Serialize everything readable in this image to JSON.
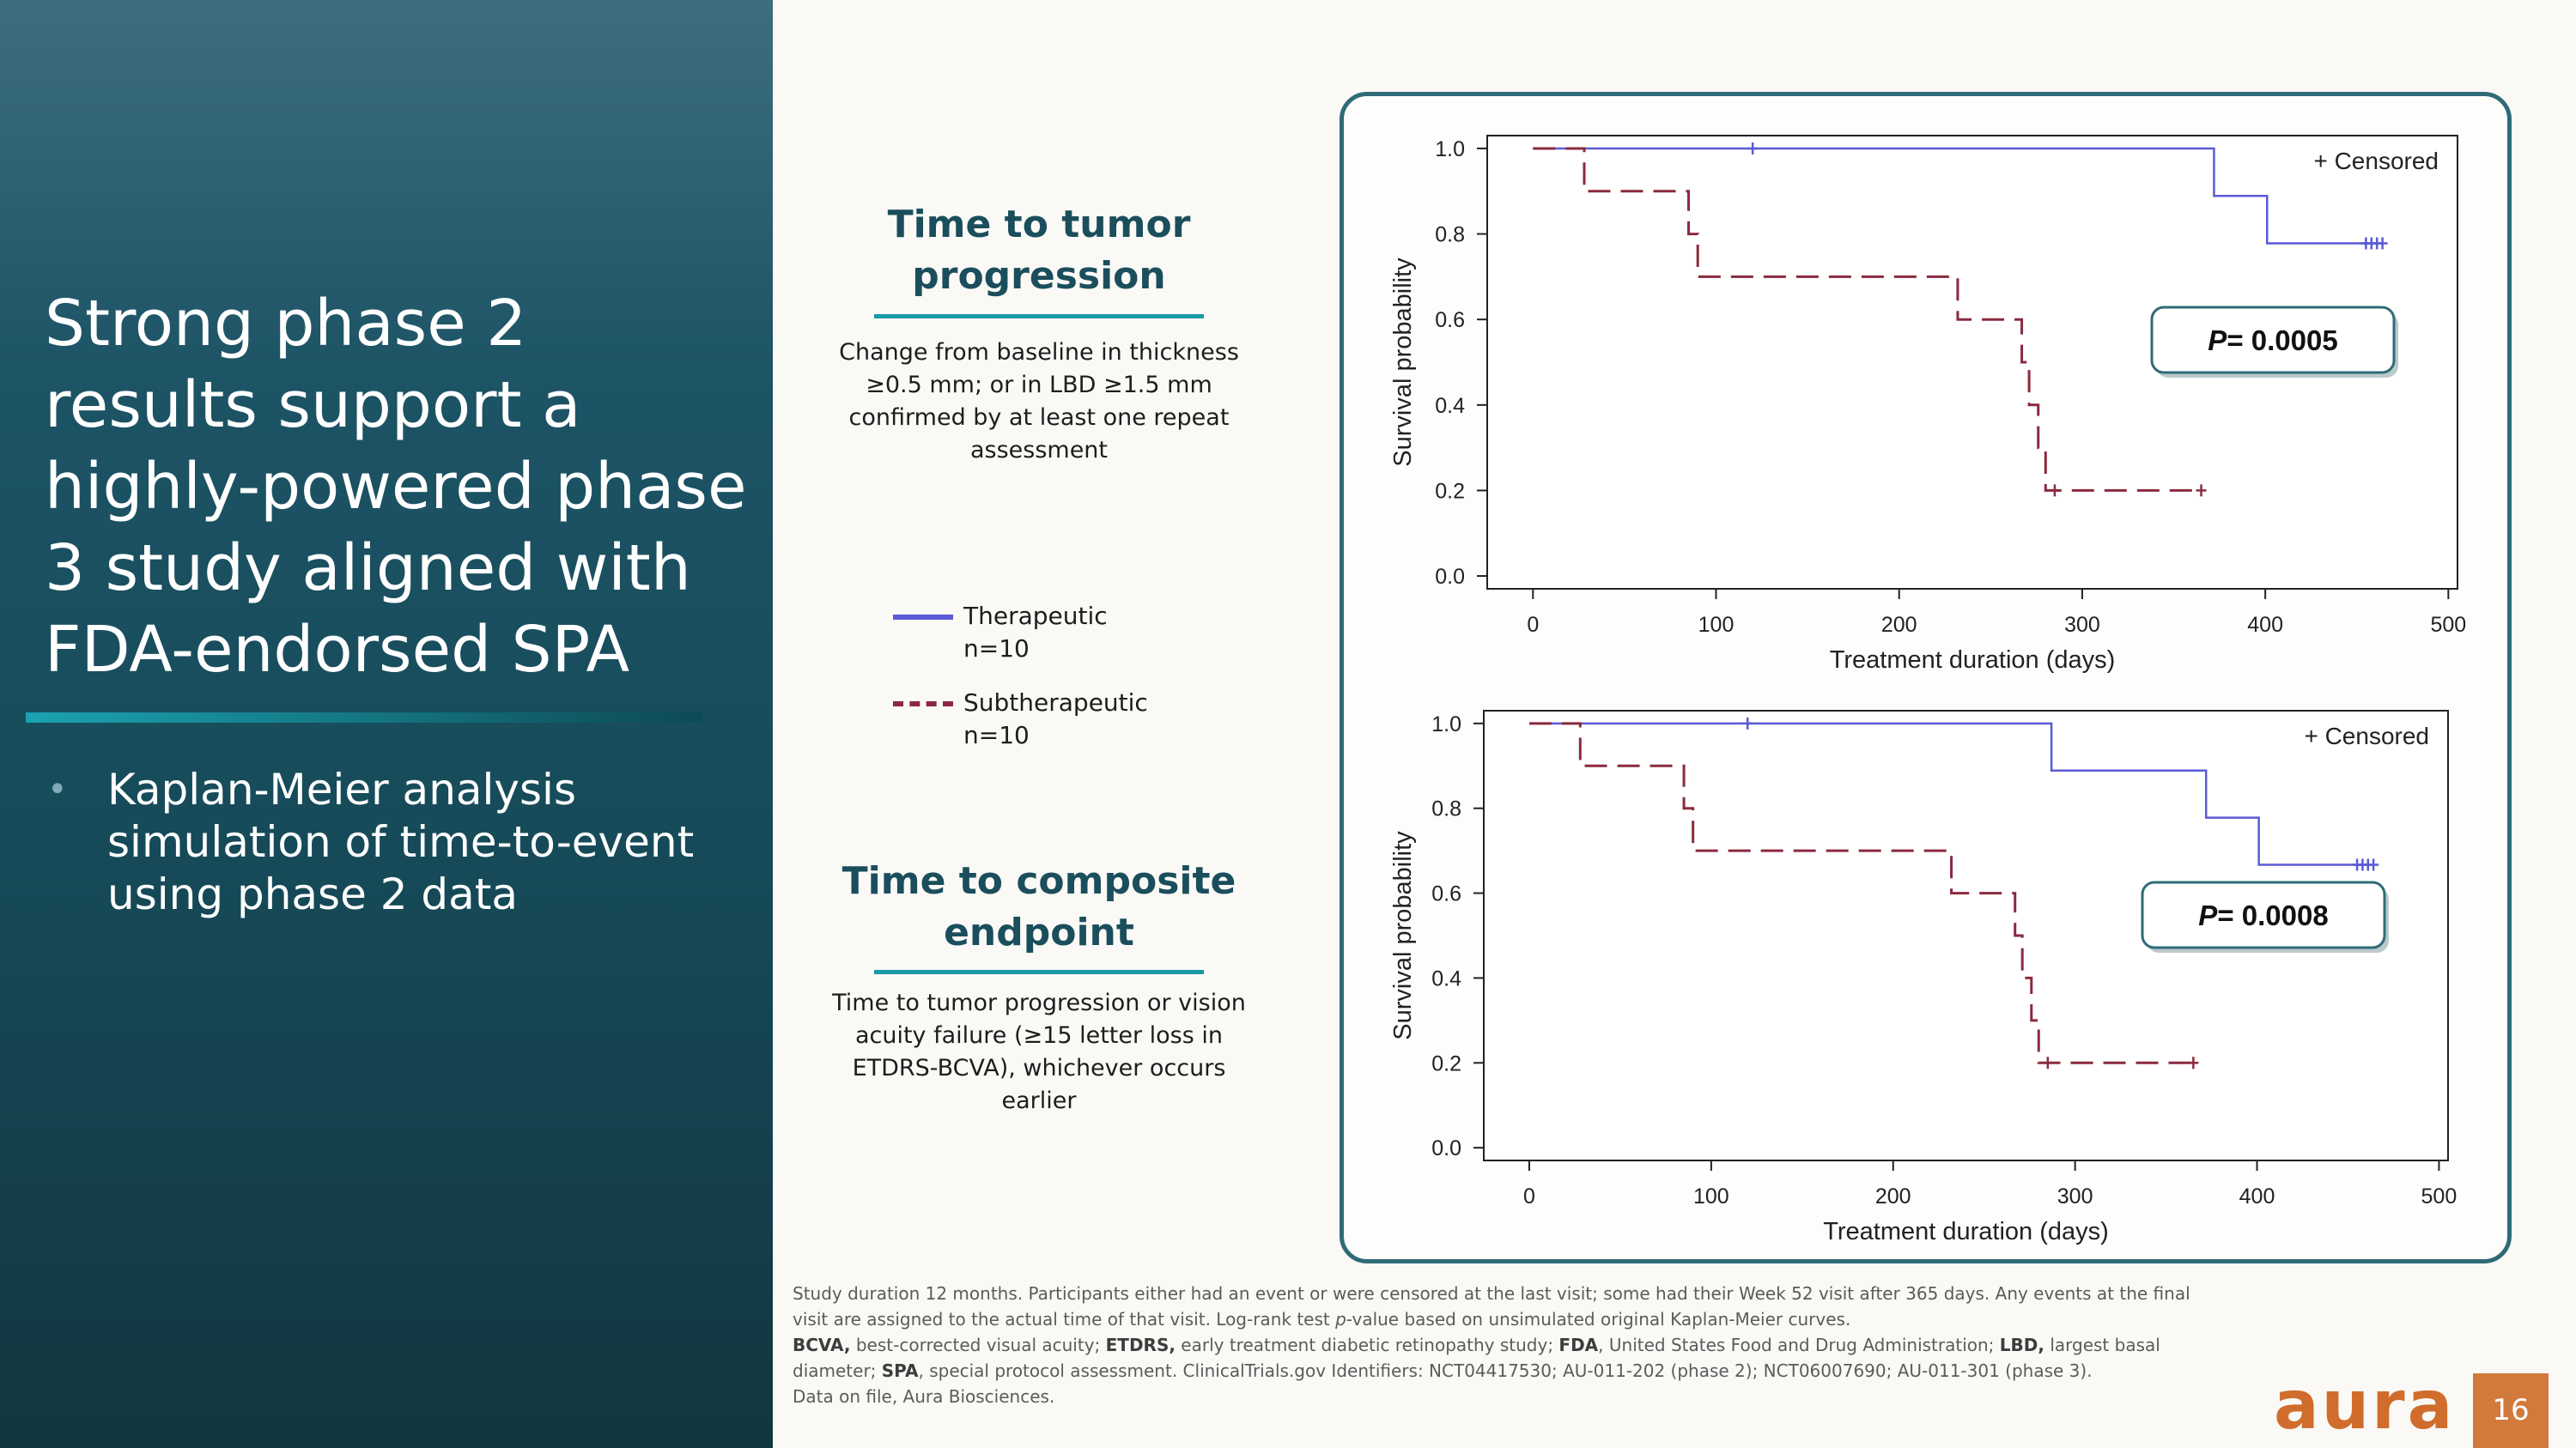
{
  "slide": {
    "title": "Strong phase 2 results support a highly-powered phase 3 study aligned with FDA-endorsed SPA",
    "bullet": "Kaplan-Meier analysis simulation of time-to-event using phase 2 data",
    "bullet_marker": "•",
    "page_number": "16",
    "logo_text": "aura"
  },
  "sections": [
    {
      "title": "Time to tumor progression",
      "description": "Change from baseline in thickness ≥0.5 mm; or in LBD ≥1.5 mm confirmed by at least one repeat assessment"
    },
    {
      "title": "Time to composite endpoint",
      "description": "Time to tumor progression or vision acuity failure (≥15 letter loss in ETDRS-BCVA), whichever occurs earlier"
    }
  ],
  "legend": [
    {
      "name": "Therapeutic",
      "n": "n=10",
      "color": "#5a5ad6",
      "style": "solid"
    },
    {
      "name": "Subtherapeutic",
      "n": "n=10",
      "color": "#8b2a3e",
      "style": "dashed"
    }
  ],
  "footnotes": {
    "line1": "Study duration 12 months. Participants either had an event or were censored at the last visit; some had their Week 52 visit after 365 days. Any events at the final visit are assigned to the actual time of that visit. Log-rank test ",
    "line1_italic": "p",
    "line1_end": "-value based on unsimulated original Kaplan-Meier curves.",
    "abbr": [
      {
        "term": "BCVA,",
        "def": " best-corrected visual acuity; "
      },
      {
        "term": "ETDRS,",
        "def": " early treatment diabetic retinopathy study; "
      },
      {
        "term": "FDA",
        "def": ", United States Food and Drug Administration; "
      },
      {
        "term": "LBD,",
        "def": " largest basal diameter; "
      },
      {
        "term": "SPA",
        "def": ", special protocol assessment. ClinicalTrials.gov Identifiers: NCT04417530; AU-011-202 (phase 2); NCT06007690; AU-011-301 (phase 3)."
      }
    ],
    "line3": "Data on file, Aura Biosciences."
  },
  "chart_data": [
    {
      "type": "line",
      "step": true,
      "xlabel": "Treatment duration (days)",
      "ylabel": "Survival probability",
      "xlim": [
        -25,
        505
      ],
      "ylim": [
        -0.03,
        1.03
      ],
      "xticks": [
        0,
        100,
        200,
        300,
        400,
        500
      ],
      "yticks": [
        0.0,
        0.2,
        0.4,
        0.6,
        0.8,
        1.0
      ],
      "ytick_labels": [
        "0.0",
        "0.2",
        "0.4",
        "0.6",
        "0.8",
        "1.0"
      ],
      "censored_label": "+ Censored",
      "p_label_italic": "P",
      "p_label_value": "= 0.0005",
      "series": [
        {
          "name": "Therapeutic",
          "color": "#5a5ad6",
          "dashed": false,
          "steps": [
            [
              0,
              1.0
            ],
            [
              372,
              0.889
            ],
            [
              401,
              0.778
            ],
            [
              462,
              0.778
            ]
          ],
          "censored": [
            [
              120,
              1.0
            ],
            [
              455,
              0.778
            ],
            [
              458,
              0.778
            ],
            [
              461,
              0.778
            ],
            [
              464,
              0.778
            ]
          ]
        },
        {
          "name": "Subtherapeutic",
          "color": "#8b2a3e",
          "dashed": true,
          "steps": [
            [
              0,
              1.0
            ],
            [
              28,
              0.9
            ],
            [
              85,
              0.8
            ],
            [
              90,
              0.7
            ],
            [
              232,
              0.6
            ],
            [
              267,
              0.5
            ],
            [
              271,
              0.4
            ],
            [
              276,
              0.3
            ],
            [
              280,
              0.2
            ],
            [
              365,
              0.2
            ]
          ],
          "censored": [
            [
              285,
              0.2
            ],
            [
              365,
              0.2
            ]
          ]
        }
      ]
    },
    {
      "type": "line",
      "step": true,
      "xlabel": "Treatment duration (days)",
      "ylabel": "Survival probability",
      "xlim": [
        -25,
        505
      ],
      "ylim": [
        -0.03,
        1.03
      ],
      "xticks": [
        0,
        100,
        200,
        300,
        400,
        500
      ],
      "yticks": [
        0.0,
        0.2,
        0.4,
        0.6,
        0.8,
        1.0
      ],
      "ytick_labels": [
        "0.0",
        "0.2",
        "0.4",
        "0.6",
        "0.8",
        "1.0"
      ],
      "censored_label": "+ Censored",
      "p_label_italic": "P",
      "p_label_value": "= 0.0008",
      "series": [
        {
          "name": "Therapeutic",
          "color": "#5a5ad6",
          "dashed": false,
          "steps": [
            [
              0,
              1.0
            ],
            [
              287,
              0.889
            ],
            [
              372,
              0.778
            ],
            [
              401,
              0.667
            ],
            [
              462,
              0.667
            ]
          ],
          "censored": [
            [
              120,
              1.0
            ],
            [
              455,
              0.667
            ],
            [
              458,
              0.667
            ],
            [
              461,
              0.667
            ],
            [
              464,
              0.667
            ]
          ]
        },
        {
          "name": "Subtherapeutic",
          "color": "#8b2a3e",
          "dashed": true,
          "steps": [
            [
              0,
              1.0
            ],
            [
              28,
              0.9
            ],
            [
              85,
              0.8
            ],
            [
              90,
              0.7
            ],
            [
              232,
              0.6
            ],
            [
              267,
              0.5
            ],
            [
              271,
              0.4
            ],
            [
              276,
              0.3
            ],
            [
              280,
              0.2
            ],
            [
              365,
              0.2
            ]
          ],
          "censored": [
            [
              285,
              0.2
            ],
            [
              365,
              0.2
            ]
          ]
        }
      ]
    }
  ]
}
